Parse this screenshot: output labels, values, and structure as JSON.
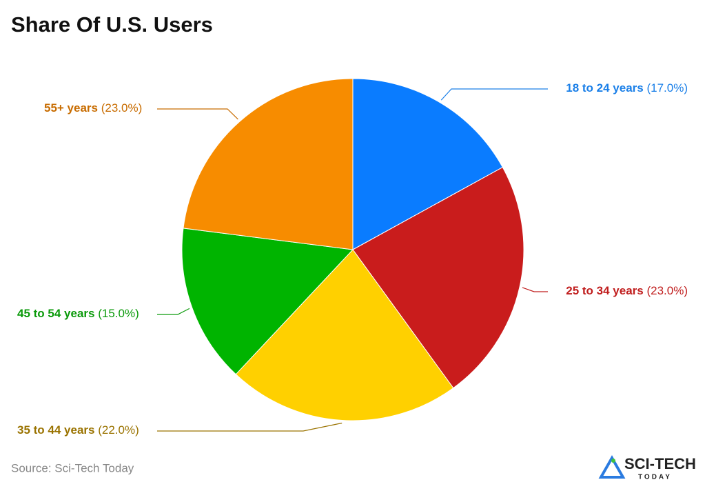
{
  "chart_data": {
    "type": "pie",
    "title": "Share Of U.S. Users",
    "categories": [
      "18 to 24 years",
      "25 to 34 years",
      "35 to 44 years",
      "45 to 54 years",
      "55+ years"
    ],
    "values": [
      17.0,
      23.0,
      22.0,
      15.0,
      23.0
    ],
    "value_labels": [
      "(17.0%)",
      "(23.0%)",
      "(22.0%)",
      "(15.0%)",
      "(23.0%)"
    ],
    "colors": [
      "#0a7cff",
      "#c91c1c",
      "#ffd000",
      "#00b400",
      "#f78c00"
    ],
    "label_colors": [
      "#1a7fe8",
      "#c01d1d",
      "#9a7300",
      "#0a9a0a",
      "#c86c00"
    ],
    "source": "Source: Sci-Tech Today"
  },
  "logo": {
    "top": "SCI-TECH",
    "bottom": "TODAY"
  }
}
